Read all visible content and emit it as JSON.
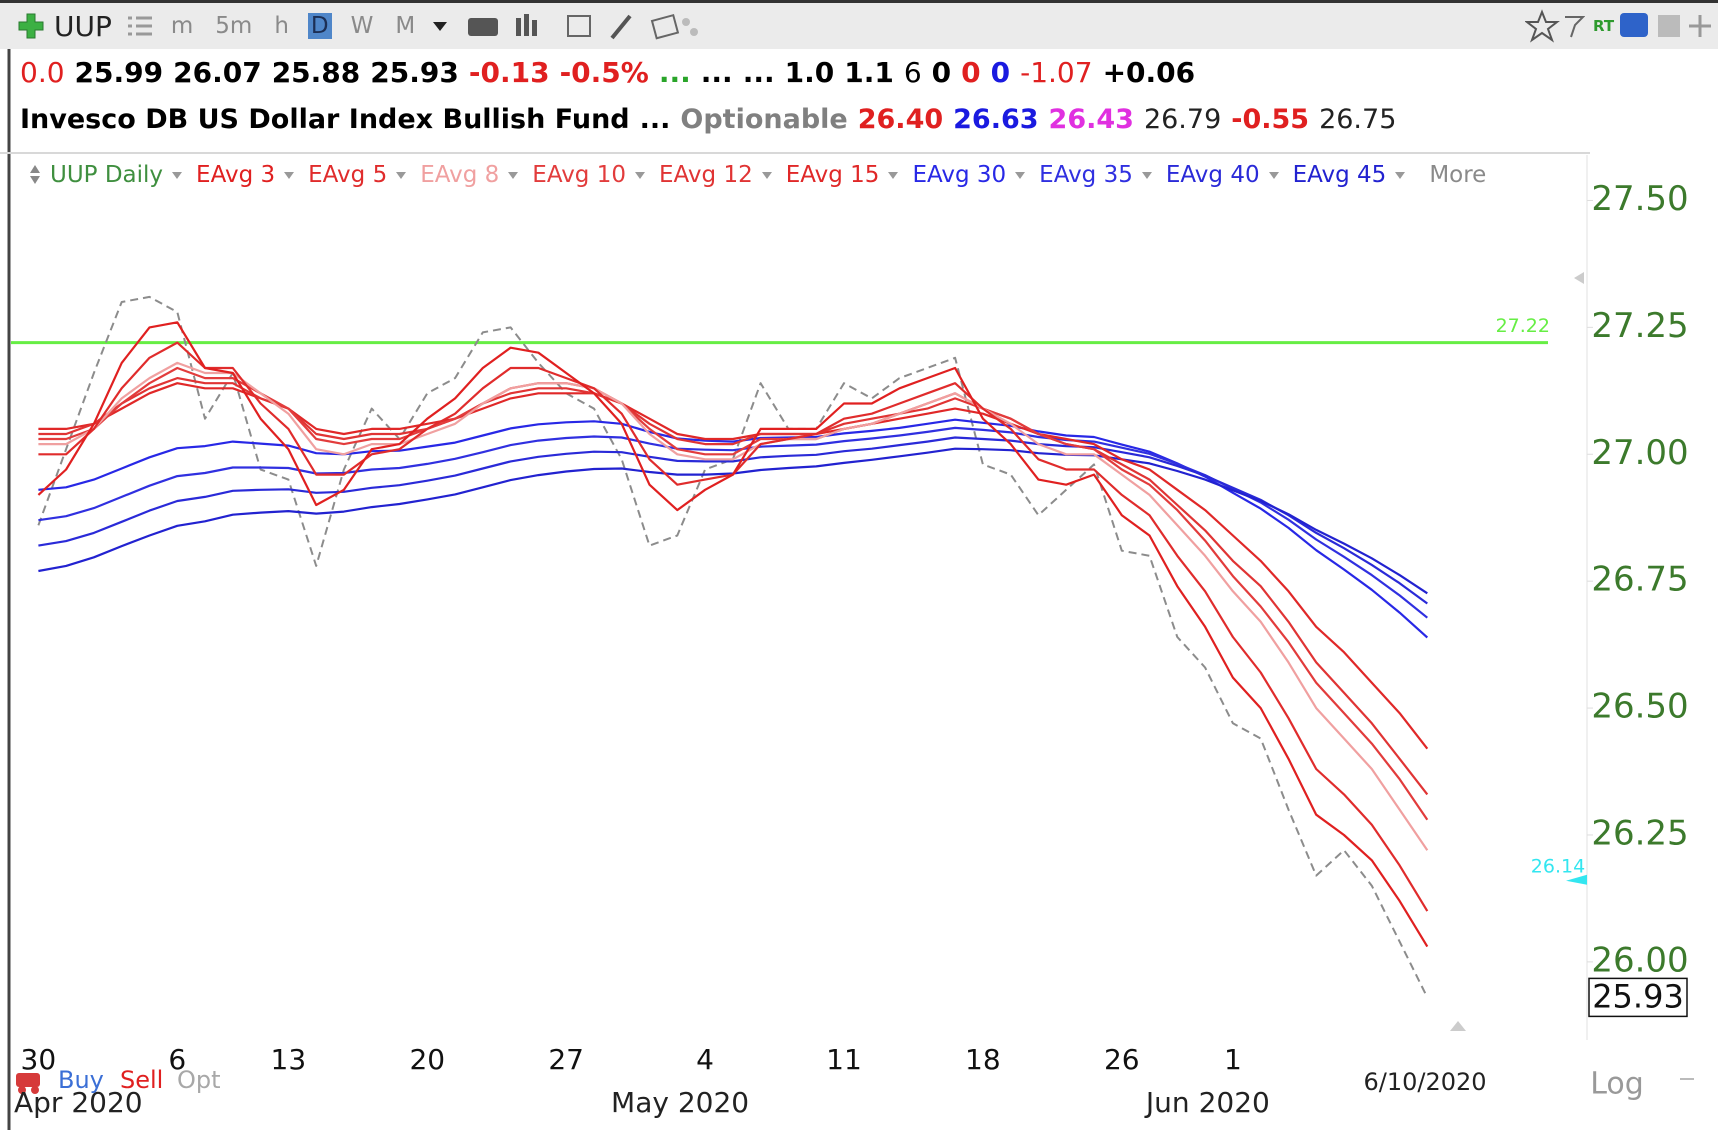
{
  "toolbar": {
    "symbol": "UUP",
    "periods": [
      "m",
      "5m",
      "h",
      "D",
      "W",
      "M"
    ],
    "active_period": "D",
    "realtime": "RT"
  },
  "quote": {
    "line1": [
      {
        "text": "0.0",
        "color": "#e02020",
        "bold": false
      },
      {
        "text": "25.99",
        "color": "#000000",
        "bold": true
      },
      {
        "text": "26.07",
        "color": "#000000",
        "bold": true
      },
      {
        "text": "25.88",
        "color": "#000000",
        "bold": true
      },
      {
        "text": "25.93",
        "color": "#000000",
        "bold": true
      },
      {
        "text": "-0.13",
        "color": "#e02020",
        "bold": true
      },
      {
        "text": "-0.5%",
        "color": "#e02020",
        "bold": true
      },
      {
        "text": "...",
        "color": "#2aa52a",
        "bold": true
      },
      {
        "text": "...",
        "color": "#000000",
        "bold": true
      },
      {
        "text": "...",
        "color": "#000000",
        "bold": true
      },
      {
        "text": "1.0",
        "color": "#000000",
        "bold": true
      },
      {
        "text": "1.1",
        "color": "#000000",
        "bold": true
      },
      {
        "text": "6",
        "color": "#000000",
        "bold": false
      },
      {
        "text": "0",
        "color": "#000000",
        "bold": true
      },
      {
        "text": "0",
        "color": "#e02020",
        "bold": true
      },
      {
        "text": "0",
        "color": "#1a1ae0",
        "bold": true
      },
      {
        "text": "-1.07",
        "color": "#e02020",
        "bold": false
      },
      {
        "text": "+0.06",
        "color": "#000000",
        "bold": true
      }
    ],
    "line2": [
      {
        "text": "Invesco DB US Dollar Index Bullish Fund",
        "color": "#000000",
        "bold": true
      },
      {
        "text": "...",
        "color": "#000000",
        "bold": true
      },
      {
        "text": "Optionable",
        "color": "#808080",
        "bold": true
      },
      {
        "text": "26.40",
        "color": "#e02020",
        "bold": true
      },
      {
        "text": "26.63",
        "color": "#1a1ae0",
        "bold": true
      },
      {
        "text": "26.43",
        "color": "#e030e0",
        "bold": true
      },
      {
        "text": "26.79",
        "color": "#222222",
        "bold": false
      },
      {
        "text": "-0.55",
        "color": "#e02020",
        "bold": true
      },
      {
        "text": "26.75",
        "color": "#222222",
        "bold": false
      }
    ]
  },
  "chart_data": {
    "type": "line",
    "categories": [
      "30",
      null,
      null,
      null,
      null,
      "6",
      null,
      null,
      null,
      "13",
      null,
      null,
      null,
      null,
      "20",
      null,
      null,
      null,
      null,
      "27",
      null,
      null,
      null,
      null,
      "4",
      null,
      null,
      null,
      null,
      "11",
      null,
      null,
      null,
      null,
      "18",
      null,
      null,
      null,
      null,
      "26",
      null,
      null,
      null,
      "1",
      null,
      null,
      null,
      null,
      null,
      null,
      null
    ],
    "months": [
      "Apr 2020",
      "May 2020",
      "Jun 2020"
    ],
    "last_date": "6/10/2020",
    "ylim": [
      25.85,
      27.6
    ],
    "yticks": [
      {
        "value": 26.0,
        "label": "26.00"
      },
      26.25,
      {
        "value": 26.5,
        "label": "26.50"
      },
      26.75,
      {
        "value": 27.0,
        "label": "27.00"
      },
      27.25,
      {
        "value": 27.5,
        "label": "27.50"
      }
    ],
    "grid": false,
    "more_label": "More",
    "scale_mode": "Log",
    "order_buttons": [
      {
        "text": "Buy",
        "color": "#3b6fd6"
      },
      {
        "text": "Sell",
        "color": "#e02020"
      },
      {
        "text": "Opt",
        "color": "#a8a8a8"
      }
    ],
    "hlines": [
      {
        "value": 27.22,
        "label": "27.22",
        "color": "#66ee44"
      }
    ],
    "markers": [
      {
        "value": 26.14,
        "label": "26.14",
        "color": "#33e6f0"
      }
    ],
    "last_price": 25.93,
    "series": [
      {
        "name": "UUP Daily",
        "color": "#8c8c8c",
        "label_color": "#3f8f3f",
        "dashed": true,
        "values": [
          26.86,
          27.01,
          27.16,
          27.3,
          27.31,
          27.28,
          27.07,
          27.16,
          26.97,
          26.95,
          26.78,
          26.97,
          27.09,
          27.03,
          27.12,
          27.15,
          27.24,
          27.25,
          27.18,
          27.12,
          27.09,
          26.99,
          26.82,
          26.84,
          26.97,
          26.99,
          27.14,
          27.05,
          27.05,
          27.14,
          27.11,
          27.15,
          27.17,
          27.19,
          26.98,
          26.96,
          26.88,
          26.93,
          26.98,
          26.81,
          26.8,
          26.64,
          26.58,
          26.47,
          26.44,
          26.3,
          26.17,
          26.22,
          26.15,
          26.04,
          25.93
        ]
      },
      {
        "name": "EAvg 30",
        "color": "#2828e6",
        "values": [
          26.93,
          26.935,
          26.95,
          26.972,
          26.994,
          27.012,
          27.016,
          27.025,
          27.021,
          27.017,
          27.002,
          27.0,
          27.006,
          27.007,
          27.015,
          27.023,
          27.037,
          27.051,
          27.059,
          27.063,
          27.065,
          27.06,
          27.044,
          27.031,
          27.027,
          27.025,
          27.032,
          27.033,
          27.034,
          27.041,
          27.046,
          27.052,
          27.06,
          27.068,
          27.062,
          27.056,
          27.045,
          27.037,
          27.034,
          27.019,
          27.005,
          26.982,
          26.956,
          26.924,
          26.893,
          26.855,
          26.811,
          26.773,
          26.733,
          26.688,
          26.639
        ]
      },
      {
        "name": "EAvg 35",
        "color": "#3030e0",
        "values": [
          26.87,
          26.878,
          26.894,
          26.916,
          26.938,
          26.957,
          26.963,
          26.974,
          26.974,
          26.973,
          26.962,
          26.963,
          26.97,
          26.973,
          26.981,
          26.991,
          27.004,
          27.018,
          27.027,
          27.032,
          27.035,
          27.033,
          27.021,
          27.011,
          27.009,
          27.008,
          27.015,
          27.017,
          27.019,
          27.026,
          27.031,
          27.037,
          27.044,
          27.052,
          27.048,
          27.043,
          27.034,
          27.028,
          27.025,
          27.013,
          27.001,
          26.981,
          26.959,
          26.932,
          26.905,
          26.871,
          26.832,
          26.798,
          26.762,
          26.722,
          26.678
        ]
      },
      {
        "name": "EAvg 40",
        "color": "#2a2ad8",
        "values": [
          26.82,
          26.829,
          26.845,
          26.867,
          26.889,
          26.908,
          26.916,
          26.928,
          26.93,
          26.931,
          26.924,
          26.926,
          26.934,
          26.939,
          26.948,
          26.958,
          26.972,
          26.986,
          26.995,
          27.001,
          27.005,
          27.004,
          26.995,
          26.987,
          26.986,
          26.986,
          26.994,
          26.997,
          26.999,
          27.006,
          27.011,
          27.018,
          27.025,
          27.033,
          27.03,
          27.027,
          27.02,
          27.016,
          27.014,
          27.004,
          26.994,
          26.977,
          26.958,
          26.934,
          26.91,
          26.88,
          26.845,
          26.815,
          26.782,
          26.746,
          26.706
        ]
      },
      {
        "name": "EAvg 45",
        "color": "#2222d0",
        "values": [
          26.77,
          26.78,
          26.797,
          26.819,
          26.84,
          26.859,
          26.868,
          26.881,
          26.885,
          26.888,
          26.883,
          26.887,
          26.896,
          26.902,
          26.911,
          26.921,
          26.935,
          26.949,
          26.959,
          26.966,
          26.971,
          26.972,
          26.965,
          26.96,
          26.96,
          26.962,
          26.969,
          26.973,
          26.976,
          26.983,
          26.989,
          26.996,
          27.003,
          27.011,
          27.01,
          27.008,
          27.002,
          26.999,
          26.998,
          26.99,
          26.982,
          26.967,
          26.95,
          26.929,
          26.908,
          26.882,
          26.851,
          26.824,
          26.795,
          26.762,
          26.726
        ]
      },
      {
        "name": "EAvg 15",
        "color": "#e02828",
        "values": [
          27.05,
          27.05,
          27.06,
          27.09,
          27.12,
          27.14,
          27.13,
          27.13,
          27.11,
          27.09,
          27.05,
          27.04,
          27.05,
          27.05,
          27.06,
          27.07,
          27.09,
          27.11,
          27.12,
          27.12,
          27.12,
          27.1,
          27.07,
          27.04,
          27.03,
          27.03,
          27.04,
          27.04,
          27.04,
          27.05,
          27.06,
          27.07,
          27.08,
          27.09,
          27.08,
          27.06,
          27.04,
          27.03,
          27.02,
          26.99,
          26.97,
          26.93,
          26.89,
          26.84,
          26.79,
          26.73,
          26.66,
          26.61,
          26.55,
          26.49,
          26.42
        ]
      },
      {
        "name": "EAvg 12",
        "color": "#e03434",
        "values": [
          27.04,
          27.04,
          27.06,
          27.1,
          27.13,
          27.15,
          27.14,
          27.14,
          27.11,
          27.09,
          27.04,
          27.03,
          27.04,
          27.04,
          27.05,
          27.07,
          27.1,
          27.12,
          27.13,
          27.13,
          27.12,
          27.1,
          27.06,
          27.03,
          27.02,
          27.02,
          27.04,
          27.04,
          27.04,
          27.06,
          27.07,
          27.08,
          27.09,
          27.11,
          27.09,
          27.07,
          27.04,
          27.02,
          27.01,
          26.98,
          26.95,
          26.9,
          26.85,
          26.79,
          26.74,
          26.67,
          26.59,
          26.53,
          26.47,
          26.4,
          26.33
        ]
      },
      {
        "name": "EAvg 10",
        "color": "#e23c3c",
        "values": [
          27.03,
          27.03,
          27.05,
          27.1,
          27.14,
          27.17,
          27.15,
          27.15,
          27.12,
          27.09,
          27.03,
          27.02,
          27.03,
          27.03,
          27.05,
          27.07,
          27.1,
          27.13,
          27.14,
          27.14,
          27.13,
          27.1,
          27.05,
          27.01,
          27.0,
          27.0,
          27.03,
          27.03,
          27.03,
          27.05,
          27.06,
          27.08,
          27.1,
          27.12,
          27.09,
          27.07,
          27.04,
          27.02,
          27.01,
          26.97,
          26.94,
          26.89,
          26.83,
          26.76,
          26.7,
          26.63,
          26.55,
          26.49,
          26.43,
          26.36,
          26.28
        ]
      },
      {
        "name": "EAvg 8",
        "color": "#f0a0a0",
        "values": [
          27.02,
          27.02,
          27.05,
          27.11,
          27.15,
          27.18,
          27.16,
          27.16,
          27.12,
          27.08,
          27.01,
          27.0,
          27.02,
          27.02,
          27.04,
          27.06,
          27.1,
          27.13,
          27.14,
          27.14,
          27.13,
          27.1,
          27.04,
          27.0,
          26.99,
          26.99,
          27.02,
          27.03,
          27.03,
          27.05,
          27.06,
          27.08,
          27.1,
          27.12,
          27.09,
          27.06,
          27.02,
          27.0,
          27.0,
          26.96,
          26.92,
          26.86,
          26.8,
          26.73,
          26.67,
          26.59,
          26.5,
          26.44,
          26.38,
          26.3,
          26.22
        ]
      },
      {
        "name": "EAvg 5",
        "color": "#e02c2c",
        "values": [
          27.0,
          27.0,
          27.05,
          27.13,
          27.19,
          27.22,
          27.17,
          27.17,
          27.1,
          27.05,
          26.96,
          26.96,
          27.0,
          27.01,
          27.05,
          27.08,
          27.13,
          27.17,
          27.17,
          27.15,
          27.13,
          27.08,
          26.99,
          26.94,
          26.95,
          26.96,
          27.02,
          27.03,
          27.04,
          27.07,
          27.08,
          27.1,
          27.12,
          27.14,
          27.09,
          27.05,
          26.99,
          26.97,
          26.97,
          26.92,
          26.88,
          26.8,
          26.73,
          26.64,
          26.57,
          26.48,
          26.38,
          26.33,
          26.27,
          26.19,
          26.1
        ]
      },
      {
        "name": "EAvg 3",
        "color": "#e02020",
        "values": [
          26.92,
          26.97,
          27.06,
          27.18,
          27.25,
          27.26,
          27.17,
          27.16,
          27.07,
          27.01,
          26.9,
          26.93,
          27.01,
          27.02,
          27.07,
          27.11,
          27.17,
          27.21,
          27.2,
          27.16,
          27.12,
          27.06,
          26.94,
          26.89,
          26.93,
          26.96,
          27.05,
          27.05,
          27.05,
          27.1,
          27.1,
          27.13,
          27.15,
          27.17,
          27.07,
          27.02,
          26.95,
          26.94,
          26.96,
          26.88,
          26.84,
          26.74,
          26.66,
          26.56,
          26.5,
          26.4,
          26.29,
          26.25,
          26.2,
          26.12,
          26.03
        ]
      }
    ],
    "legend_order": [
      0,
      10,
      9,
      8,
      7,
      6,
      5,
      1,
      2,
      3,
      4
    ]
  }
}
